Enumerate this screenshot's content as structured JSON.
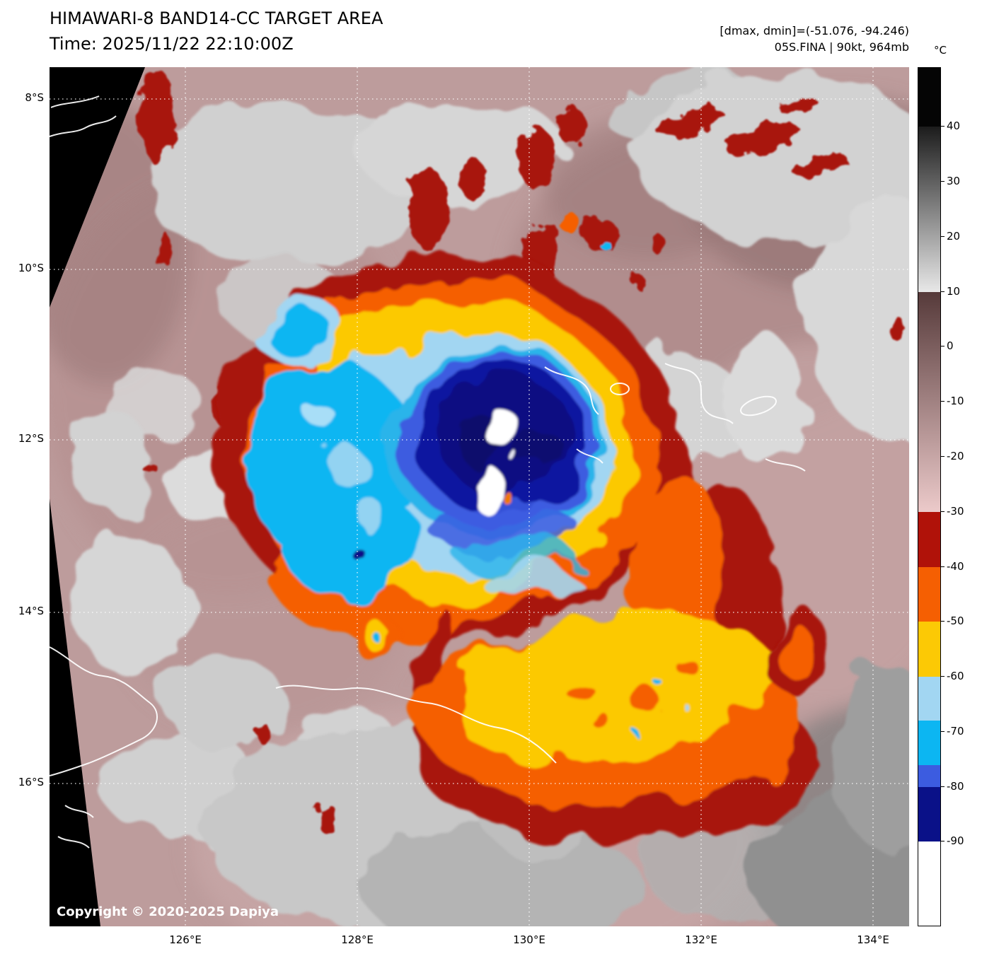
{
  "header": {
    "title_line1": "HIMAWARI-8 BAND14-CC TARGET AREA",
    "title_line2": "Time: 2025/11/22 22:10:00Z",
    "info_line1": "[dmax, dmin]=(-51.076, -94.246)",
    "info_line2": "05S.FINA | 90kt, 964mb"
  },
  "axes": {
    "lat_labels": [
      "8°S",
      "10°S",
      "12°S",
      "14°S",
      "16°S"
    ],
    "lon_labels": [
      "126°E",
      "128°E",
      "130°E",
      "132°E",
      "134°E"
    ]
  },
  "colorbar": {
    "unit": "°C",
    "range_top_value": 50.7,
    "range_bottom_value": -105.5,
    "ticks": [
      {
        "value": 40,
        "label": "40"
      },
      {
        "value": 30,
        "label": "30"
      },
      {
        "value": 20,
        "label": "20"
      },
      {
        "value": 10,
        "label": "10"
      },
      {
        "value": 0,
        "label": "0"
      },
      {
        "value": -10,
        "label": "-10"
      },
      {
        "value": -20,
        "label": "-20"
      },
      {
        "value": -30,
        "label": "-30"
      },
      {
        "value": -40,
        "label": "-40"
      },
      {
        "value": -50,
        "label": "-50"
      },
      {
        "value": -60,
        "label": "-60"
      },
      {
        "value": -70,
        "label": "-70"
      },
      {
        "value": -80,
        "label": "-80"
      },
      {
        "value": -90,
        "label": "-90"
      }
    ],
    "segments": [
      {
        "from": 50.7,
        "to": 40,
        "color": "#050505"
      },
      {
        "from": 40,
        "to": 10,
        "color_top": "#1c1c1c",
        "color_bottom": "#e8e8e8"
      },
      {
        "from": 10,
        "to": -30,
        "color_top": "#563a3a",
        "color_bottom": "#eccaca"
      },
      {
        "from": -30,
        "to": -40,
        "color": "#b01209"
      },
      {
        "from": -40,
        "to": -50,
        "color": "#f55f02"
      },
      {
        "from": -50,
        "to": -60,
        "color": "#fcc905"
      },
      {
        "from": -60,
        "to": -68,
        "color": "#a2d6f2"
      },
      {
        "from": -68,
        "to": -76,
        "color": "#0cb6f2"
      },
      {
        "from": -76,
        "to": -80,
        "color": "#3c5ce0"
      },
      {
        "from": -80,
        "to": -90,
        "color": "#0a1188"
      },
      {
        "from": -90,
        "to": -105.5,
        "color": "#ffffff"
      }
    ]
  },
  "map": {
    "copyright": "Copyright © 2020-2025 Dapiya",
    "palette": {
      "deep_convection_red": "#a81208",
      "cold_orange": "#f55f02",
      "cold_yellow": "#fcc905",
      "pale_blue": "#a2d6f2",
      "cyan": "#0cb6f2",
      "royal_blue": "#3c5ce0",
      "navy": "#0a1188",
      "overshoot_white": "#ffffff",
      "warm_pink": "#c2a0a0",
      "cirrus_gray": "#d0d0d0",
      "space_black": "#000000"
    }
  }
}
